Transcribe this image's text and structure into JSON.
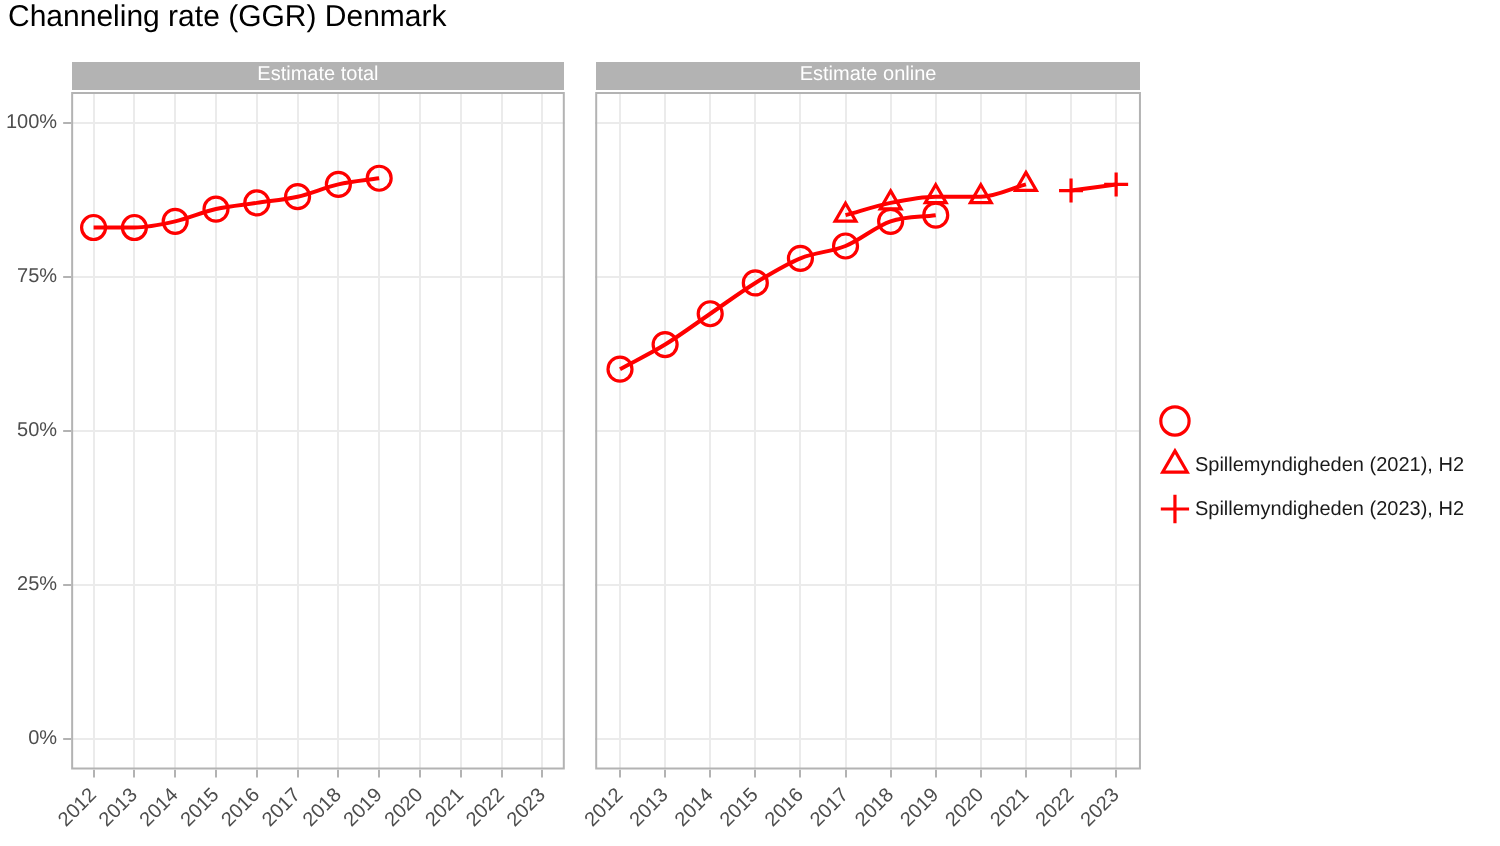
{
  "chart_data": [
    {
      "type": "line",
      "title": "Channeling rate (GGR) Denmark",
      "subtitle": "Estimate total",
      "xlim": [
        2011.45,
        2023.55
      ],
      "xticks": [
        2012,
        2013,
        2014,
        2015,
        2016,
        2017,
        2018,
        2019,
        2020,
        2021,
        2022,
        2023
      ],
      "ylim": [
        -5,
        105
      ],
      "yticks": [
        {
          "value": 0,
          "label": "0%"
        },
        {
          "value": 25,
          "label": "25%"
        },
        {
          "value": 50,
          "label": "50%"
        },
        {
          "value": 75,
          "label": "75%"
        },
        {
          "value": 100,
          "label": "100%"
        }
      ],
      "grid": true,
      "legend": false,
      "line_style": "solid",
      "series": [
        {
          "name": null,
          "color": "#ff0000",
          "marker": "circle",
          "x": [
            2012,
            2013,
            2014,
            2015,
            2016,
            2017,
            2018,
            2019
          ],
          "values": [
            83,
            83,
            84,
            86,
            87,
            88,
            90,
            91
          ]
        }
      ]
    },
    {
      "type": "line",
      "subtitle": "Estimate online",
      "xlim": [
        2011.45,
        2023.55
      ],
      "xticks": [
        2012,
        2013,
        2014,
        2015,
        2016,
        2017,
        2018,
        2019,
        2020,
        2021,
        2022,
        2023
      ],
      "ylim": [
        -5,
        105
      ],
      "yticks": [
        0,
        25,
        50,
        75,
        100
      ],
      "tick_labels": "x",
      "grid": true,
      "legend": "right",
      "line_style": "solid",
      "series": [
        {
          "name": null,
          "color": "#ff0000",
          "marker": "circle",
          "x": [
            2012,
            2013,
            2014,
            2015,
            2016,
            2017,
            2018,
            2019
          ],
          "values": [
            60,
            64,
            69,
            74,
            78,
            80,
            84,
            85
          ]
        },
        {
          "name": "Spillemyndigheden (2021), H2",
          "color": "#ff0000",
          "marker": "triangle",
          "x": [
            2017,
            2018,
            2019,
            2020,
            2021
          ],
          "values": [
            85,
            87,
            88,
            88,
            90
          ]
        },
        {
          "name": "Spillemyndigheden (2023), H2",
          "color": "#ff0000",
          "marker": "cross",
          "x": [
            2022,
            2023
          ],
          "values": [
            89,
            90
          ]
        }
      ]
    }
  ]
}
